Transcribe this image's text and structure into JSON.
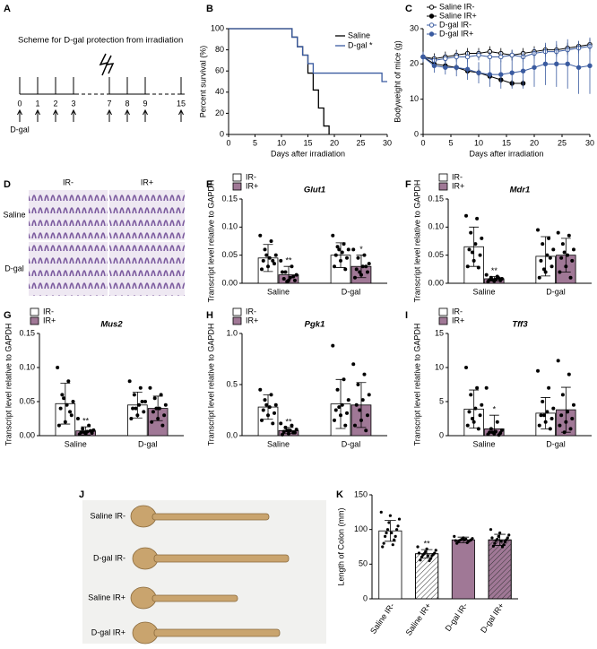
{
  "scheme": {
    "label": "A",
    "title": "Scheme for D-gal protection from irradiation",
    "days": [
      "0",
      "1",
      "2",
      "3",
      "7",
      "8",
      "9",
      "15"
    ],
    "treatment": "D-gal"
  },
  "histology": {
    "label": "D",
    "columns": [
      "IR-",
      "IR+"
    ],
    "rows": [
      "Saline",
      "D-gal"
    ]
  },
  "photo": {
    "label": "J",
    "rows": [
      "Saline IR-",
      "D-gal IR-",
      "Saline IR+",
      "D-gal IR+"
    ]
  },
  "chart_data": [
    {
      "label": "B",
      "type": "step",
      "xlabel": "Days after irradiation",
      "ylabel": "Percent survival (%)",
      "xlim": [
        0,
        30
      ],
      "xticks": [
        0,
        5,
        10,
        15,
        20,
        25,
        30
      ],
      "ylim": [
        0,
        100
      ],
      "yticks": [
        0,
        20,
        40,
        60,
        80,
        100
      ],
      "legend": "upper right",
      "series": [
        {
          "name": "Saline",
          "color": "#000000",
          "x": [
            0,
            12,
            13,
            14,
            15,
            16,
            17,
            18,
            19
          ],
          "values": [
            100,
            92,
            83,
            75,
            58,
            42,
            25,
            8,
            0
          ]
        },
        {
          "name": "D-gal *",
          "color": "#3a5ba0",
          "x": [
            0,
            12,
            13,
            14,
            15,
            16,
            29,
            30
          ],
          "values": [
            100,
            92,
            83,
            75,
            67,
            58,
            50,
            50
          ]
        }
      ]
    },
    {
      "label": "C",
      "type": "line",
      "xlabel": "Days after irradiation",
      "ylabel": "Bodyweight of mice (g)",
      "x": [
        0,
        2,
        4,
        6,
        8,
        10,
        12,
        14,
        16,
        18,
        20,
        22,
        24,
        26,
        28,
        30
      ],
      "xlim": [
        0,
        30
      ],
      "xticks": [
        0,
        5,
        10,
        15,
        20,
        25,
        30
      ],
      "ylim": [
        0,
        30
      ],
      "yticks": [
        0,
        10,
        20,
        30
      ],
      "legend": "upper left",
      "series": [
        {
          "name": "Saline IR-",
          "color": "#000000",
          "filled": false,
          "values": [
            22,
            21.5,
            22,
            22.5,
            23,
            23,
            23.5,
            23,
            22.5,
            23,
            23.5,
            24,
            24,
            24.5,
            25,
            25.5
          ],
          "errors": [
            1.5,
            1.5,
            1.5,
            1.5,
            1.5,
            1.5,
            1.5,
            1.5,
            1.5,
            1.5,
            1.5,
            1.5,
            1.5,
            1.5,
            1.5,
            1.5
          ]
        },
        {
          "name": "Saline IR+",
          "color": "#000000",
          "filled": true,
          "values": [
            22,
            20,
            19.5,
            19,
            18,
            17.5,
            16.5,
            15.5,
            14.5,
            14.5,
            null,
            null,
            null,
            null,
            null,
            null
          ],
          "errors": [
            1,
            1,
            1,
            1,
            1,
            1,
            1,
            1,
            1,
            1,
            null,
            null,
            null,
            null,
            null,
            null
          ]
        },
        {
          "name": "D-gal IR-",
          "color": "#3a5ba0",
          "filled": false,
          "values": [
            22,
            21,
            21.5,
            22,
            22,
            22.5,
            22,
            22,
            22.5,
            22,
            23,
            23.5,
            23.5,
            24,
            24.5,
            25
          ],
          "errors": [
            1.5,
            1.5,
            1.5,
            1.5,
            1.5,
            1.5,
            1.5,
            1.5,
            1.5,
            1.5,
            1.5,
            1.5,
            1.5,
            1.5,
            1.5,
            1.5
          ]
        },
        {
          "name": "D-gal IR+",
          "color": "#3a5ba0",
          "filled": true,
          "values": [
            22,
            19.5,
            19,
            19,
            18.5,
            17.5,
            17,
            17,
            17.5,
            18,
            19,
            20,
            20,
            20,
            19,
            19.5
          ],
          "errors": [
            1,
            2,
            2,
            2.5,
            3,
            3,
            3.5,
            4,
            4.5,
            5,
            5.5,
            6,
            6.5,
            7,
            7.5,
            8
          ]
        }
      ]
    },
    {
      "label": "E",
      "type": "bar",
      "title": "Glut1",
      "ylabel": "Transcript level relative to GAPDH",
      "categories": [
        "Saline",
        "D-gal"
      ],
      "ylim": [
        0,
        0.15
      ],
      "yticks": [
        {
          "value": 0,
          "label": "0.00"
        },
        0.05,
        {
          "value": 0.1,
          "label": "0.10"
        },
        {
          "value": 0.15,
          "label": "0.15"
        }
      ],
      "legend": "upper left",
      "series": [
        {
          "name": "IR-",
          "color": "#ffffff",
          "values": [
            0.045,
            0.05
          ],
          "errors": [
            0.024,
            0.022
          ],
          "significance": [
            null,
            null
          ],
          "points": [
            [
              0.085,
              0.075,
              0.06,
              0.05,
              0.045,
              0.04,
              0.035,
              0.03,
              0.025,
              0.04,
              0.05
            ],
            [
              0.085,
              0.07,
              0.065,
              0.06,
              0.055,
              0.05,
              0.045,
              0.04,
              0.03,
              0.025,
              0.06
            ]
          ]
        },
        {
          "name": "IR+",
          "color": "#a07896",
          "values": [
            0.015,
            0.03
          ],
          "errors": [
            0.015,
            0.02
          ],
          "significance": [
            "**",
            "*"
          ],
          "points": [
            [
              0.04,
              0.03,
              0.02,
              0.015,
              0.01,
              0.008,
              0.005,
              0.005,
              0.02,
              0.012,
              0.003
            ],
            [
              0.06,
              0.05,
              0.045,
              0.035,
              0.03,
              0.025,
              0.02,
              0.015,
              0.01,
              0.03,
              0.02
            ]
          ]
        }
      ]
    },
    {
      "label": "F",
      "type": "bar",
      "title": "Mdr1",
      "ylabel": "Transcript level relative to GAPDH",
      "categories": [
        "Saline",
        "D-gal"
      ],
      "ylim": [
        0,
        0.15
      ],
      "yticks": [
        {
          "value": 0,
          "label": "0.00"
        },
        0.05,
        {
          "value": 0.1,
          "label": "0.10"
        },
        {
          "value": 0.15,
          "label": "0.15"
        }
      ],
      "legend": "upper left",
      "series": [
        {
          "name": "IR-",
          "color": "#ffffff",
          "values": [
            0.065,
            0.048
          ],
          "errors": [
            0.035,
            0.035
          ],
          "significance": [
            null,
            null
          ],
          "points": [
            [
              0.12,
              0.115,
              0.09,
              0.08,
              0.07,
              0.06,
              0.05,
              0.04,
              0.03,
              0.028,
              0.055
            ],
            [
              0.095,
              0.08,
              0.07,
              0.06,
              0.05,
              0.04,
              0.03,
              0.02,
              0.01,
              0.045,
              0.025
            ]
          ]
        },
        {
          "name": "IR+",
          "color": "#a07896",
          "values": [
            0.008,
            0.05
          ],
          "errors": [
            0.004,
            0.03
          ],
          "significance": [
            "**",
            null
          ],
          "points": [
            [
              0.015,
              0.012,
              0.01,
              0.008,
              0.007,
              0.006,
              0.005,
              0.004,
              0.003,
              0.009,
              0.006
            ],
            [
              0.09,
              0.085,
              0.07,
              0.06,
              0.05,
              0.045,
              0.04,
              0.03,
              0.02,
              0.01,
              0.055
            ]
          ]
        }
      ]
    },
    {
      "label": "G",
      "type": "bar",
      "title": "Mus2",
      "ylabel": "Transcript level relative to GAPDH",
      "categories": [
        "Saline",
        "D-gal"
      ],
      "ylim": [
        0,
        0.15
      ],
      "yticks": [
        {
          "value": 0,
          "label": "0.00"
        },
        0.05,
        {
          "value": 0.1,
          "label": "0.10"
        },
        {
          "value": 0.15,
          "label": "0.15"
        }
      ],
      "legend": "upper left",
      "series": [
        {
          "name": "IR-",
          "color": "#ffffff",
          "values": [
            0.047,
            0.045
          ],
          "errors": [
            0.03,
            0.019
          ],
          "significance": [
            null,
            null
          ],
          "points": [
            [
              0.1,
              0.08,
              0.06,
              0.05,
              0.045,
              0.04,
              0.03,
              0.02,
              0.015,
              0.035,
              0.055
            ],
            [
              0.08,
              0.07,
              0.06,
              0.05,
              0.045,
              0.04,
              0.035,
              0.03,
              0.025,
              0.05,
              0.04
            ]
          ]
        },
        {
          "name": "IR+",
          "color": "#a07896",
          "values": [
            0.007,
            0.04
          ],
          "errors": [
            0.006,
            0.018
          ],
          "significance": [
            "**",
            null
          ],
          "points": [
            [
              0.025,
              0.015,
              0.01,
              0.008,
              0.006,
              0.005,
              0.004,
              0.003,
              0.002,
              0.007,
              0.005
            ],
            [
              0.07,
              0.06,
              0.055,
              0.045,
              0.04,
              0.035,
              0.03,
              0.025,
              0.02,
              0.015,
              0.04
            ]
          ]
        }
      ]
    },
    {
      "label": "H",
      "type": "bar",
      "title": "Pgk1",
      "ylabel": "Transcript level relative to GAPDH",
      "categories": [
        "Saline",
        "D-gal"
      ],
      "ylim": [
        0,
        1.0
      ],
      "yticks": [
        {
          "value": 0,
          "label": "0.0"
        },
        0.5,
        {
          "value": 1,
          "label": "1.0"
        }
      ],
      "legend": "upper left",
      "series": [
        {
          "name": "IR-",
          "color": "#ffffff",
          "values": [
            0.28,
            0.31
          ],
          "errors": [
            0.12,
            0.24
          ],
          "significance": [
            null,
            null
          ],
          "points": [
            [
              0.45,
              0.4,
              0.35,
              0.3,
              0.28,
              0.25,
              0.22,
              0.2,
              0.15,
              0.12,
              0.3
            ],
            [
              0.88,
              0.55,
              0.45,
              0.35,
              0.3,
              0.25,
              0.22,
              0.2,
              0.15,
              0.1,
              0.28
            ]
          ]
        },
        {
          "name": "IR+",
          "color": "#a07896",
          "values": [
            0.05,
            0.3
          ],
          "errors": [
            0.03,
            0.22
          ],
          "significance": [
            "**",
            null
          ],
          "points": [
            [
              0.12,
              0.1,
              0.08,
              0.06,
              0.05,
              0.04,
              0.03,
              0.02,
              0.01,
              0.03,
              0.05
            ],
            [
              0.7,
              0.6,
              0.5,
              0.4,
              0.35,
              0.3,
              0.2,
              0.15,
              0.1,
              0.05,
              0.25
            ]
          ]
        }
      ]
    },
    {
      "label": "I",
      "type": "bar",
      "title": "Tff3",
      "ylabel": "Transcript level relative to GAPDH",
      "categories": [
        "Saline",
        "D-gal"
      ],
      "ylim": [
        0,
        15
      ],
      "yticks": [
        0,
        5,
        10,
        15
      ],
      "legend": "upper left",
      "series": [
        {
          "name": "IR-",
          "color": "#ffffff",
          "values": [
            3.9,
            3.3
          ],
          "errors": [
            2.8,
            2.3
          ],
          "significance": [
            null,
            null
          ],
          "points": [
            [
              10,
              7,
              6,
              4.5,
              4,
              3.5,
              3,
              2,
              1.5,
              1,
              2.5
            ],
            [
              9.5,
              7,
              5,
              4,
              3.5,
              3,
              2.5,
              2,
              1.5,
              1,
              3
            ]
          ]
        },
        {
          "name": "IR+",
          "color": "#a07896",
          "values": [
            1.0,
            3.8
          ],
          "errors": [
            2.0,
            3.3
          ],
          "significance": [
            "*",
            null
          ],
          "points": [
            [
              7,
              2,
              1,
              0.8,
              0.6,
              0.5,
              0.4,
              0.3,
              0.2,
              0.1,
              0.5
            ],
            [
              11,
              9,
              6,
              4.5,
              3.5,
              3,
              2.5,
              2,
              1.5,
              1,
              0.5
            ]
          ]
        }
      ]
    },
    {
      "label": "K",
      "type": "bar",
      "ylabel": "Length of Colon (mm)",
      "categories": [
        "Saline IR-",
        "Saline IR+",
        "D-gal IR-",
        "D-gal IR+"
      ],
      "ylim": [
        0,
        150
      ],
      "yticks": [
        0,
        50,
        100,
        150
      ],
      "values": [
        98,
        65,
        85,
        85
      ],
      "errors": [
        15,
        6,
        4,
        8
      ],
      "colors": [
        "#ffffff",
        "#ffffff",
        "#a07896",
        "#a07896"
      ],
      "hatched": [
        false,
        true,
        false,
        true
      ],
      "significance": [
        null,
        "**",
        null,
        null
      ],
      "points": [
        [
          125,
          120,
          115,
          110,
          105,
          100,
          100,
          95,
          90,
          90,
          85,
          80,
          78,
          75,
          95
        ],
        [
          75,
          72,
          70,
          68,
          66,
          65,
          64,
          63,
          62,
          60,
          58,
          56,
          55,
          66,
          62
        ],
        [
          90,
          88,
          87,
          86,
          85,
          85,
          84,
          84,
          83,
          82,
          81,
          80,
          86,
          84,
          85
        ],
        [
          100,
          95,
          92,
          90,
          88,
          86,
          85,
          84,
          82,
          80,
          78,
          76,
          75,
          88,
          83
        ]
      ]
    }
  ]
}
